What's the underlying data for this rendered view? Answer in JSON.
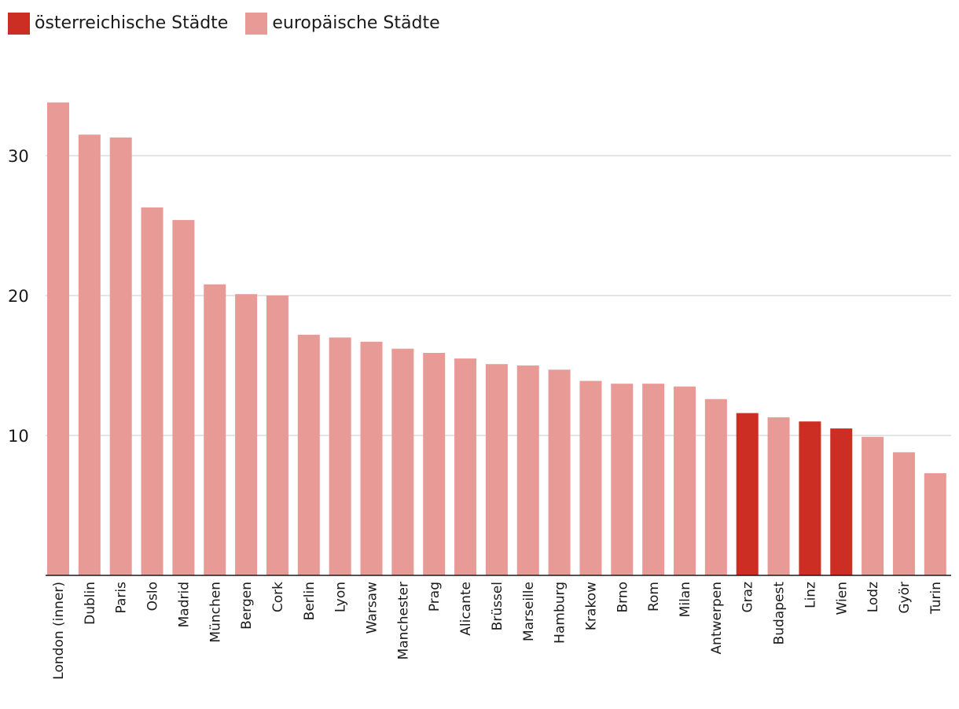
{
  "legend": {
    "austrian_label": "österreichische Städte",
    "european_label": "europäische Städte"
  },
  "colors": {
    "austrian": "#cc2e24",
    "european": "#e89a96",
    "grid": "#dcdcdc",
    "axis": "#1a1a1a"
  },
  "chart_data": {
    "type": "bar",
    "title": "",
    "xlabel": "",
    "ylabel": "",
    "ylim": [
      0,
      34
    ],
    "yticks": [
      10,
      20,
      30
    ],
    "grid": true,
    "legend_position": "top-left",
    "categories": [
      "London (inner)",
      "Dublin",
      "Paris",
      "Oslo",
      "Madrid",
      "München",
      "Bergen",
      "Cork",
      "Berlin",
      "Lyon",
      "Warsaw",
      "Manchester",
      "Prag",
      "Alicante",
      "Brüssel",
      "Marseille",
      "Hamburg",
      "Krakow",
      "Brno",
      "Rom",
      "Milan",
      "Antwerpen",
      "Graz",
      "Budapest",
      "Linz",
      "Wien",
      "Lodz",
      "Györ",
      "Turin"
    ],
    "values": [
      33.8,
      31.5,
      31.3,
      26.3,
      25.4,
      20.8,
      20.1,
      20.0,
      17.2,
      17.0,
      16.7,
      16.2,
      15.9,
      15.5,
      15.1,
      15.0,
      14.7,
      13.9,
      13.7,
      13.7,
      13.5,
      12.6,
      11.6,
      11.3,
      11.0,
      10.5,
      9.9,
      8.8,
      7.3
    ],
    "groups": [
      "europäisch",
      "europäisch",
      "europäisch",
      "europäisch",
      "europäisch",
      "europäisch",
      "europäisch",
      "europäisch",
      "europäisch",
      "europäisch",
      "europäisch",
      "europäisch",
      "europäisch",
      "europäisch",
      "europäisch",
      "europäisch",
      "europäisch",
      "europäisch",
      "europäisch",
      "europäisch",
      "europäisch",
      "europäisch",
      "österreichisch",
      "europäisch",
      "österreichisch",
      "österreichisch",
      "europäisch",
      "europäisch",
      "europäisch"
    ]
  }
}
